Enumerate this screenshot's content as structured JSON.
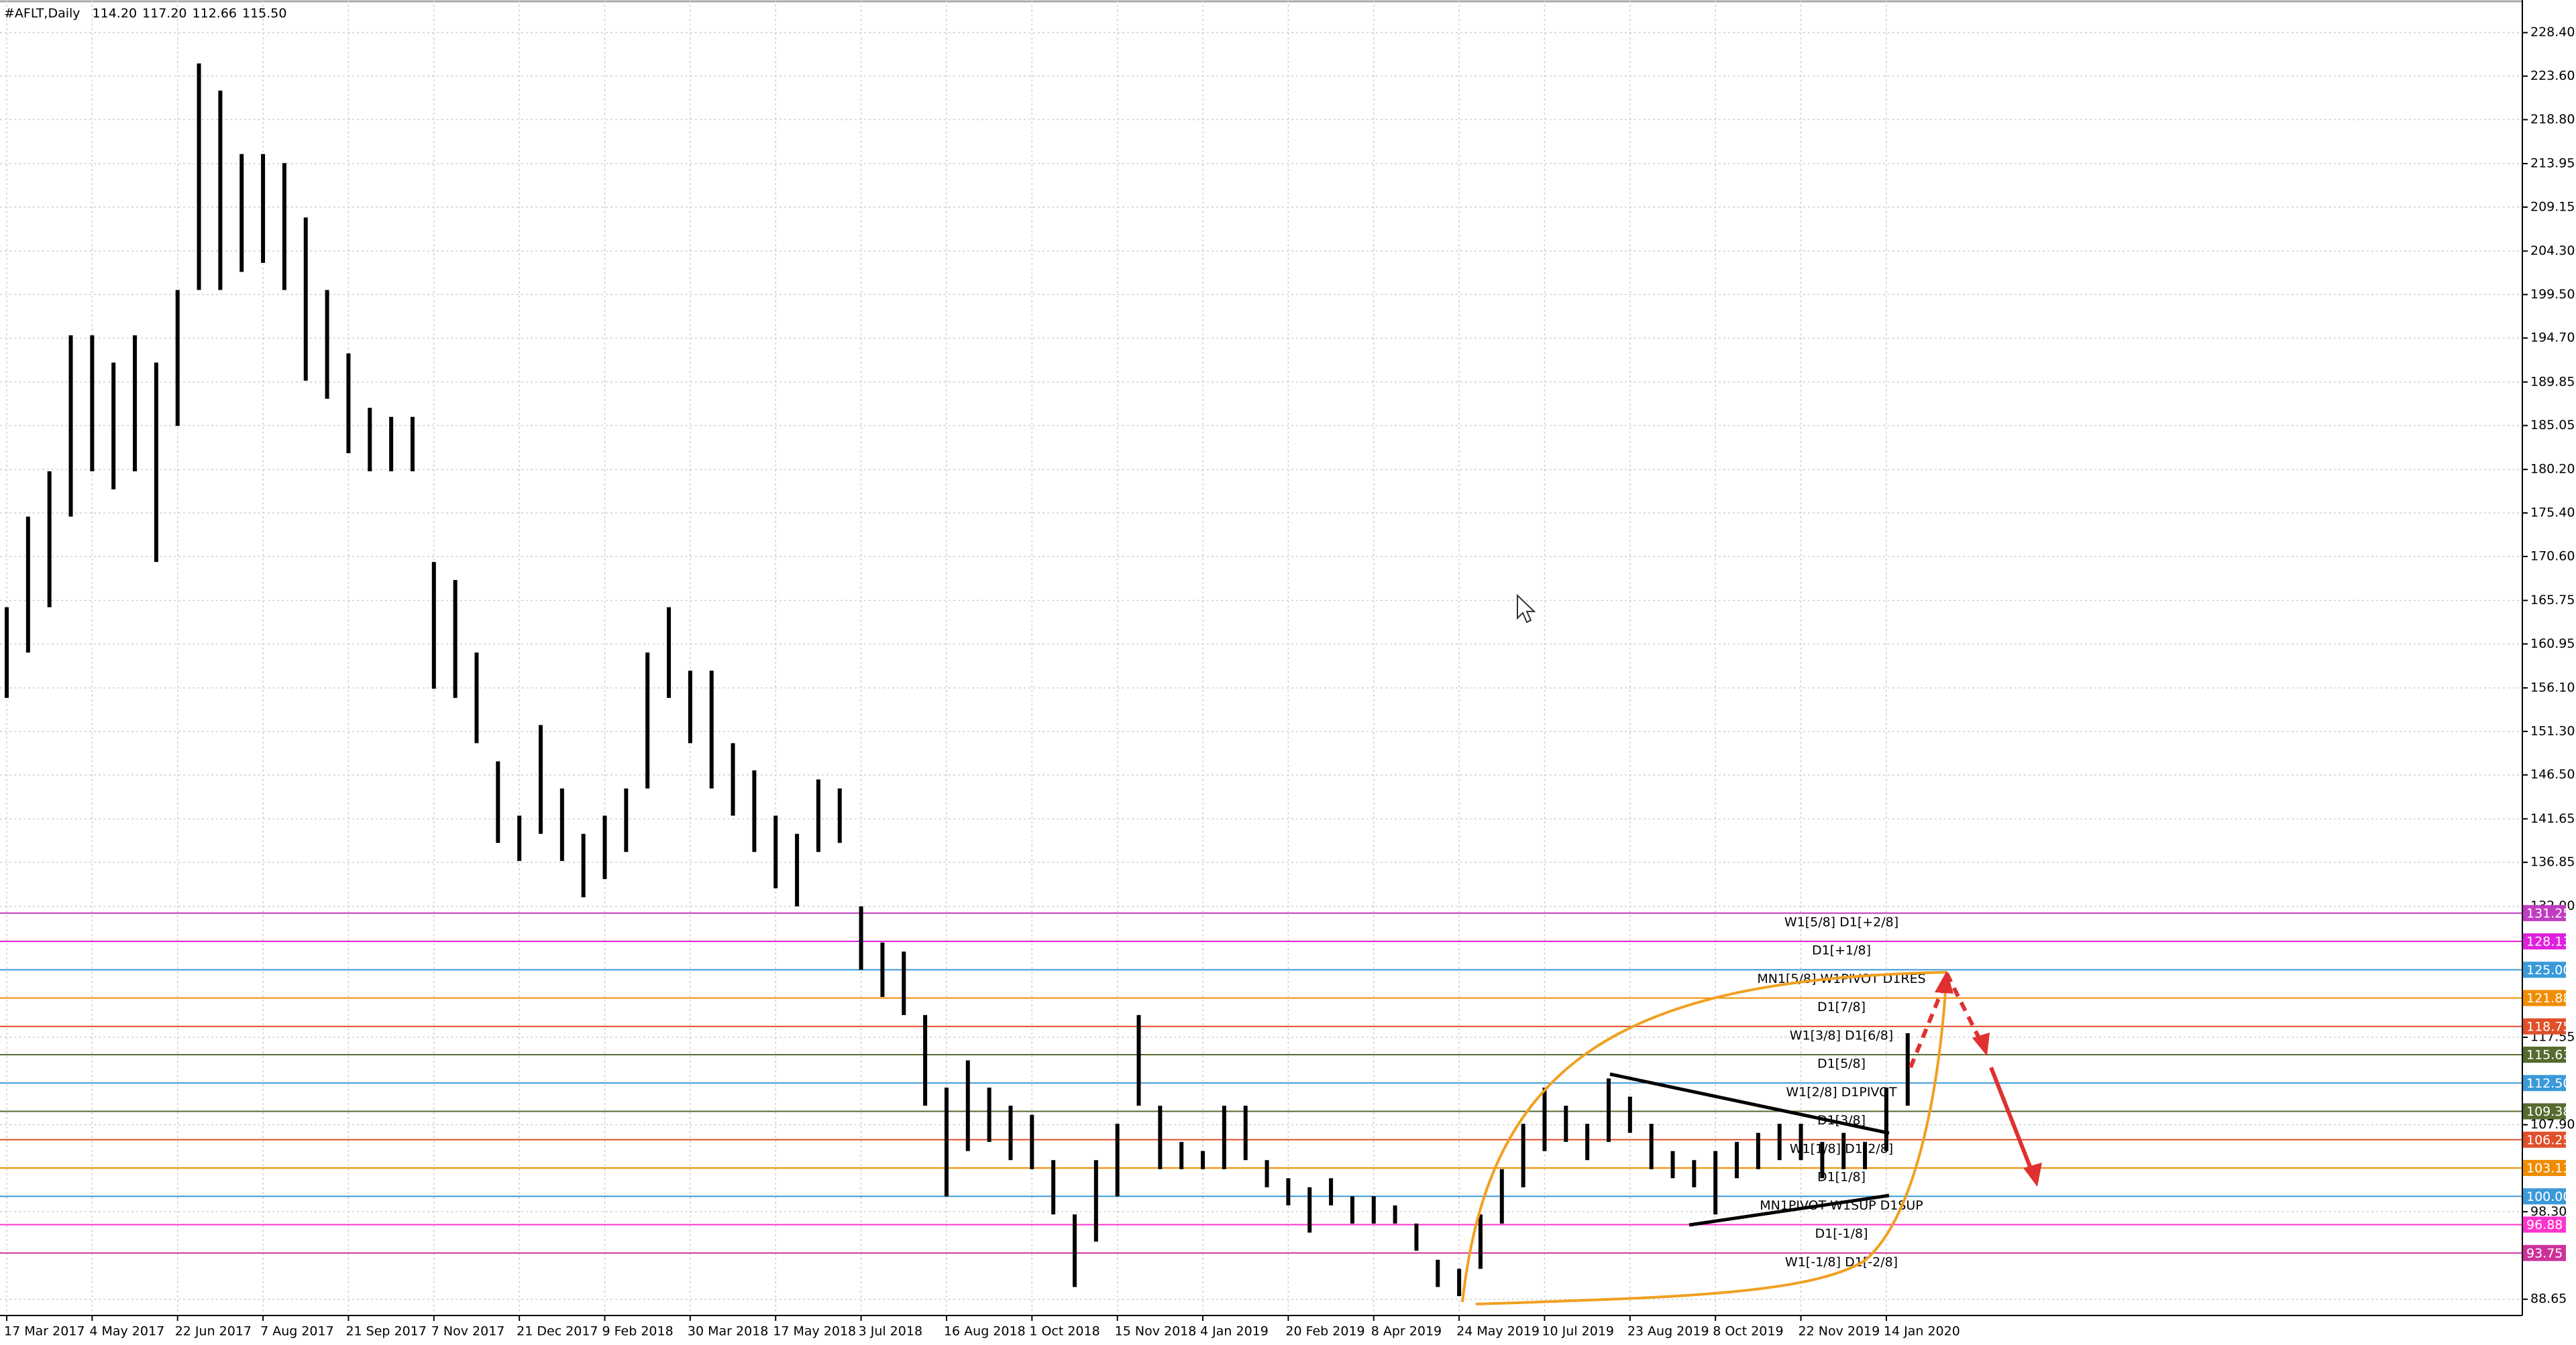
{
  "chart_data": {
    "type": "range",
    "symbol": "#AFLT,Daily",
    "ohlc": [
      "114.20",
      "117.20",
      "112.66",
      "115.50"
    ],
    "color": "#000000",
    "categories": [
      "17 Mar 2017",
      null,
      null,
      null,
      "4 May 2017",
      null,
      null,
      null,
      "22 Jun 2017",
      null,
      null,
      null,
      "7 Aug 2017",
      null,
      null,
      null,
      "21 Sep 2017",
      null,
      null,
      null,
      "7 Nov 2017",
      null,
      null,
      null,
      "21 Dec 2017",
      null,
      null,
      null,
      "9 Feb 2018",
      null,
      null,
      null,
      "30 Mar 2018",
      null,
      null,
      null,
      "17 May 2018",
      null,
      null,
      null,
      "3 Jul 2018",
      null,
      null,
      null,
      "16 Aug 2018",
      null,
      null,
      null,
      "1 Oct 2018",
      null,
      null,
      null,
      "15 Nov 2018",
      null,
      null,
      null,
      "4 Jan 2019",
      null,
      null,
      null,
      "20 Feb 2019",
      null,
      null,
      null,
      "8 Apr 2019",
      null,
      null,
      null,
      "24 May 2019",
      null,
      null,
      null,
      "10 Jul 2019",
      null,
      null,
      null,
      "23 Aug 2019",
      null,
      null,
      null,
      "8 Oct 2019",
      null,
      null,
      null,
      "22 Nov 2019",
      null,
      null,
      null,
      "14 Jan 2020",
      null
    ],
    "high": [
      165,
      175,
      180,
      195,
      195,
      192,
      195,
      192,
      200,
      225,
      222,
      215,
      215,
      214,
      208,
      200,
      193,
      187,
      186,
      186,
      170,
      168,
      160,
      148,
      142,
      152,
      145,
      140,
      142,
      145,
      160,
      165,
      158,
      158,
      150,
      147,
      142,
      140,
      146,
      145,
      132,
      128,
      127,
      120,
      112,
      115,
      112,
      110,
      109,
      104,
      98,
      104,
      108,
      120,
      110,
      106,
      105,
      110,
      110,
      104,
      102,
      101,
      102,
      100,
      100,
      99,
      97,
      93,
      92,
      98,
      103,
      108,
      112,
      110,
      108,
      113,
      111,
      108,
      105,
      104,
      105,
      106,
      107,
      108,
      108,
      106,
      107,
      106,
      112,
      118
    ],
    "low": [
      155,
      160,
      165,
      175,
      180,
      178,
      180,
      170,
      185,
      200,
      200,
      202,
      203,
      200,
      190,
      188,
      182,
      180,
      180,
      180,
      156,
      155,
      150,
      139,
      137,
      140,
      137,
      133,
      135,
      138,
      145,
      155,
      150,
      145,
      142,
      138,
      134,
      132,
      138,
      139,
      125,
      122,
      120,
      110,
      100,
      105,
      106,
      104,
      103,
      98,
      90,
      95,
      100,
      110,
      103,
      103,
      103,
      103,
      104,
      101,
      99,
      96,
      99,
      97,
      97,
      97,
      94,
      90,
      89,
      92,
      97,
      101,
      105,
      106,
      104,
      106,
      107,
      103,
      102,
      101,
      98,
      102,
      103,
      104,
      104,
      102,
      103,
      103,
      105,
      110
    ],
    "ylim": [
      87,
      232
    ],
    "yticks": [
      {
        "value": 228.4,
        "label": "228.40"
      },
      {
        "value": 223.6,
        "label": "223.60"
      },
      {
        "value": 218.8,
        "label": "218.80"
      },
      213.95,
      209.15,
      {
        "value": 204.3,
        "label": "204.30"
      },
      {
        "value": 199.5,
        "label": "199.50"
      },
      {
        "value": 194.7,
        "label": "194.70"
      },
      189.85,
      185.05,
      {
        "value": 180.2,
        "label": "180.20"
      },
      {
        "value": 175.4,
        "label": "175.40"
      },
      {
        "value": 170.6,
        "label": "170.60"
      },
      165.75,
      160.95,
      {
        "value": 156.1,
        "label": "156.10"
      },
      {
        "value": 151.3,
        "label": "151.30"
      },
      {
        "value": 146.5,
        "label": "146.50"
      },
      141.65,
      136.85,
      {
        "value": 132,
        "label": "132.00"
      },
      117.55,
      {
        "value": 107.9,
        "label": "107.90"
      },
      {
        "value": 98.3,
        "label": "98.30"
      },
      88.65
    ],
    "grid": true,
    "levels": [
      {
        "name": "W1[5/8] D1[+2/8]",
        "value": 131.25,
        "color": "#c03cc0"
      },
      {
        "name": "D1[+1/8]",
        "value": 128.13,
        "color": "#e020e0"
      },
      {
        "name": "MN1[5/8] W1PIVOT D1RES",
        "value": 125,
        "value_label": "125.00",
        "color": "#3a9ad9"
      },
      {
        "name": "D1[7/8]",
        "value": 121.88,
        "color": "#f08c00"
      },
      {
        "name": "W1[3/8] D1[6/8]",
        "value": 118.75,
        "color": "#e0502a"
      },
      {
        "name": "D1[5/8]",
        "value": 115.63,
        "color": "#556b2f"
      },
      {
        "name": "W1[2/8] D1PIVOT",
        "value": 112.5,
        "value_label": "112.50",
        "color": "#3a9ad9"
      },
      {
        "name": "D1[3/8]",
        "value": 109.38,
        "color": "#556b2f"
      },
      {
        "name": "W1[1/8] D1[2/8]",
        "value": 106.25,
        "color": "#e0502a"
      },
      {
        "name": "D1[1/8]",
        "value": 103.13,
        "color": "#f08c00"
      },
      {
        "name": "MN1PIVOT W1SUP D1SUP",
        "value": 100,
        "value_label": "100.00",
        "color": "#3a9ad9"
      },
      {
        "name": "D1[-1/8]",
        "value": 96.88,
        "color": "#ff33cc"
      },
      {
        "name": "W1[-1/8] D1[-2/8]",
        "value": 93.75,
        "color": "#cc3399"
      }
    ]
  }
}
